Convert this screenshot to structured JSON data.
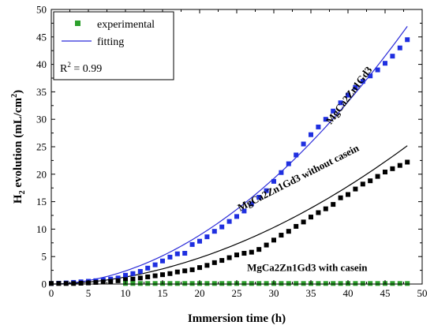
{
  "chart_data": {
    "type": "scatter",
    "xlabel": "Immersion time (h)",
    "ylabel": {
      "prefix": "H",
      "sub": "2",
      "middle": " evolution (mL/cm",
      "sup": "2",
      "suffix": ")"
    },
    "xlim": [
      0,
      50
    ],
    "ylim": [
      0,
      50
    ],
    "xticks": [
      0,
      5,
      10,
      15,
      20,
      25,
      30,
      35,
      40,
      45,
      50
    ],
    "yticks": [
      0,
      5,
      10,
      15,
      20,
      25,
      30,
      35,
      40,
      45,
      50
    ],
    "grid": false,
    "legend": {
      "position": "top-left",
      "entries": [
        {
          "label": "experimental",
          "marker": "square",
          "color": "#2ca02c"
        },
        {
          "label": "fitting",
          "marker": "line",
          "color": "#2b2bd9"
        }
      ],
      "r2": {
        "prefix": "R",
        "sup": "2",
        "suffix": " = 0.99"
      }
    },
    "series": [
      {
        "name": "MgCa2Zn1Gd3",
        "color": "#1f2fe0",
        "x": [
          0,
          1,
          2,
          3,
          4,
          5,
          6,
          7,
          8,
          9,
          10,
          11,
          12,
          13,
          14,
          15,
          16,
          17,
          18,
          19,
          20,
          21,
          22,
          23,
          24,
          25,
          26,
          27,
          28,
          29,
          30,
          31,
          32,
          33,
          34,
          35,
          36,
          37,
          38,
          39,
          40,
          41,
          42,
          43,
          44,
          45,
          46,
          47,
          48
        ],
        "y": [
          0.1,
          0.15,
          0.2,
          0.3,
          0.4,
          0.5,
          0.6,
          0.75,
          0.9,
          1.1,
          1.6,
          1.9,
          2.3,
          2.9,
          3.5,
          4.2,
          4.9,
          5.5,
          5.6,
          7.2,
          7.8,
          8.6,
          9.6,
          10.4,
          11.4,
          12.3,
          13.3,
          14.6,
          15.8,
          17.0,
          18.7,
          20.3,
          21.9,
          23.5,
          25.5,
          27.2,
          28.6,
          30.0,
          31.5,
          33.0,
          34.4,
          35.8,
          36.9,
          37.9,
          39.0,
          40.2,
          41.5,
          43.0,
          44.5
        ],
        "fit": {
          "a": 0.03,
          "b": 1.9,
          "color": "#2b2bd9"
        }
      },
      {
        "name": "MgCa2Zn1Gd3 without casein",
        "color": "#000000",
        "x": [
          0,
          1,
          2,
          3,
          4,
          5,
          6,
          7,
          8,
          9,
          10,
          11,
          12,
          13,
          14,
          15,
          16,
          17,
          18,
          19,
          20,
          21,
          22,
          23,
          24,
          25,
          26,
          27,
          28,
          29,
          30,
          31,
          32,
          33,
          34,
          35,
          36,
          37,
          38,
          39,
          40,
          41,
          42,
          43,
          44,
          45,
          46,
          47,
          48
        ],
        "y": [
          0.1,
          0.1,
          0.1,
          0.1,
          0.15,
          0.2,
          0.3,
          0.4,
          0.5,
          0.6,
          0.8,
          0.9,
          1.1,
          1.3,
          1.5,
          1.7,
          1.9,
          2.2,
          2.4,
          2.6,
          3.0,
          3.4,
          3.9,
          4.3,
          4.8,
          5.3,
          5.6,
          5.8,
          6.3,
          7.1,
          8.0,
          8.9,
          9.6,
          10.5,
          11.3,
          12.2,
          13.0,
          13.7,
          14.5,
          15.7,
          16.3,
          17.3,
          18.2,
          18.8,
          19.6,
          20.4,
          21.0,
          21.6,
          22.2
        ],
        "fit": {
          "a": 0.0161,
          "b": 1.9,
          "color": "#000000"
        }
      },
      {
        "name": "MgCa2Zn1Gd3 with casein",
        "color": "#2ca02c",
        "x": [
          10,
          11,
          12,
          13,
          14,
          15,
          16,
          17,
          18,
          19,
          20,
          21,
          22,
          23,
          24,
          25,
          26,
          27,
          28,
          29,
          30,
          31,
          32,
          33,
          34,
          35,
          36,
          37,
          38,
          39,
          40,
          41,
          42,
          43,
          44,
          45,
          46,
          47,
          48
        ],
        "y": [
          0.1,
          0.1,
          0.1,
          0.1,
          0.1,
          0.1,
          0.1,
          0.1,
          0.1,
          0.1,
          0.1,
          0.1,
          0.1,
          0.1,
          0.1,
          0.1,
          0.1,
          0.1,
          0.1,
          0.1,
          0.1,
          0.1,
          0.1,
          0.1,
          0.1,
          0.1,
          0.1,
          0.1,
          0.1,
          0.1,
          0.1,
          0.1,
          0.1,
          0.1,
          0.1,
          0.1,
          0.1,
          0.1,
          0.1
        ],
        "fit": null
      }
    ],
    "annotations": [
      {
        "text": "MgCa2Zn1Gd3",
        "x": 40.5,
        "y": 34.0,
        "angle": -53
      },
      {
        "text": "MgCa2Zn1Gd3 without casein",
        "x": 33.5,
        "y": 18.8,
        "angle": -27
      },
      {
        "text": "MgCa2Zn1Gd3 with casein",
        "x": 34.5,
        "y": 2.4,
        "angle": 0
      }
    ]
  }
}
